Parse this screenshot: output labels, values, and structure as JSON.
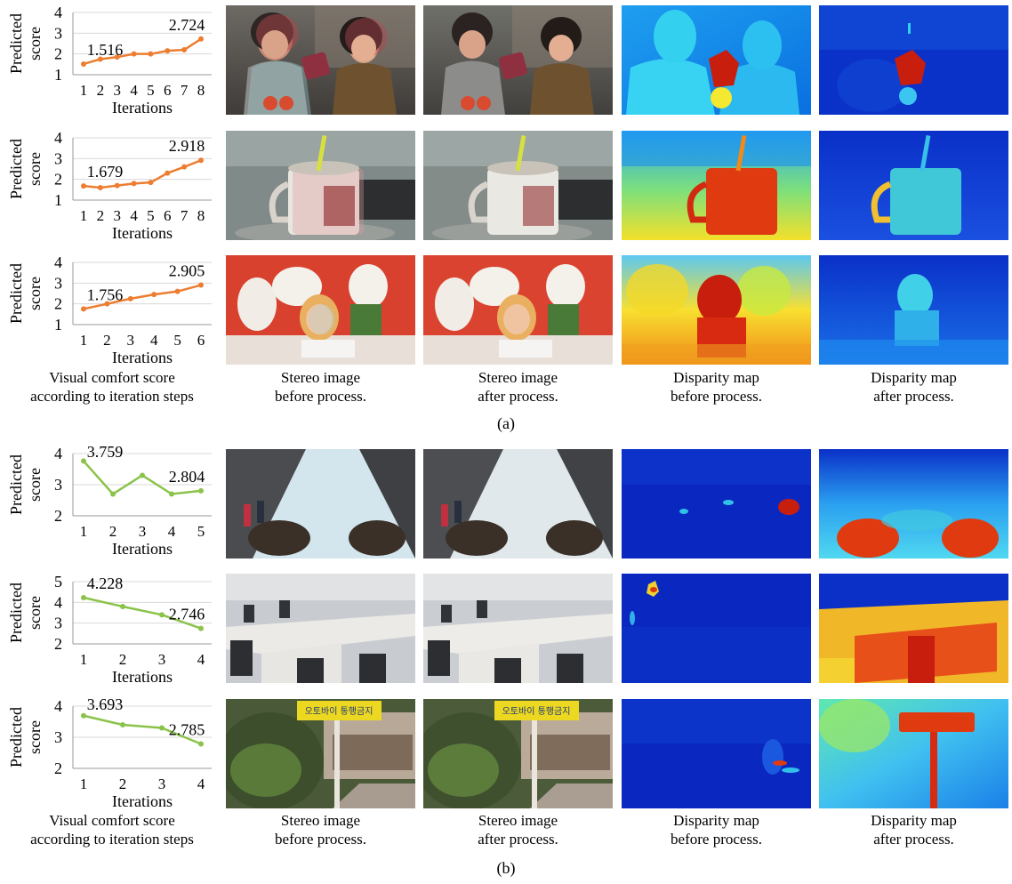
{
  "captions": {
    "chart": [
      "Visual comfort score",
      "according to iteration steps"
    ],
    "stereo_before": [
      "Stereo image",
      "before process."
    ],
    "stereo_after": [
      "Stereo image",
      "after process."
    ],
    "disparity_before": [
      "Disparity map",
      "before process."
    ],
    "disparity_after": [
      "Disparity map",
      "after process."
    ]
  },
  "subfigure_labels": {
    "a": "(a)",
    "b": "(b)"
  },
  "chart_data": [
    {
      "type": "line",
      "xlabel": "Iterations",
      "ylabel": "Predicted score",
      "x": [
        1,
        2,
        3,
        4,
        5,
        6,
        7,
        8
      ],
      "values": [
        1.516,
        1.75,
        1.85,
        2.0,
        2.0,
        2.15,
        2.2,
        2.724
      ],
      "ylim": [
        1,
        4
      ],
      "yticks": [
        1,
        2,
        3,
        4
      ],
      "annotations": [
        {
          "x": 1,
          "text": "1.516"
        },
        {
          "x": 8,
          "text": "2.724"
        }
      ],
      "color": "#ED7D31"
    },
    {
      "type": "line",
      "xlabel": "Iterations",
      "ylabel": "Predicted score",
      "x": [
        1,
        2,
        3,
        4,
        5,
        6,
        7,
        8
      ],
      "values": [
        1.679,
        1.6,
        1.7,
        1.8,
        1.85,
        2.3,
        2.6,
        2.918
      ],
      "ylim": [
        1,
        4
      ],
      "yticks": [
        1,
        2,
        3,
        4
      ],
      "annotations": [
        {
          "x": 1,
          "text": "1.679"
        },
        {
          "x": 8,
          "text": "2.918"
        }
      ],
      "color": "#ED7D31"
    },
    {
      "type": "line",
      "xlabel": "Iterations",
      "ylabel": "Predicted score",
      "x": [
        1,
        2,
        3,
        4,
        5,
        6
      ],
      "values": [
        1.756,
        2.0,
        2.25,
        2.45,
        2.6,
        2.905
      ],
      "ylim": [
        1,
        4
      ],
      "yticks": [
        1,
        2,
        3,
        4
      ],
      "annotations": [
        {
          "x": 1,
          "text": "1.756"
        },
        {
          "x": 6,
          "text": "2.905"
        }
      ],
      "color": "#ED7D31"
    },
    {
      "type": "line",
      "xlabel": "Iterations",
      "ylabel": "Predicted score",
      "x": [
        1,
        2,
        3,
        4,
        5
      ],
      "values": [
        3.759,
        2.7,
        3.3,
        2.7,
        2.804
      ],
      "ylim": [
        2,
        4
      ],
      "yticks": [
        2,
        3,
        4
      ],
      "annotations": [
        {
          "x": 1,
          "text": "3.759"
        },
        {
          "x": 5,
          "text": "2.804"
        }
      ],
      "color": "#8BC34A"
    },
    {
      "type": "line",
      "xlabel": "Iterations",
      "ylabel": "Predicted score",
      "x": [
        1,
        2,
        3,
        4
      ],
      "values": [
        4.228,
        3.8,
        3.4,
        2.746
      ],
      "ylim": [
        2,
        5
      ],
      "yticks": [
        2,
        3,
        4,
        5
      ],
      "annotations": [
        {
          "x": 1,
          "text": "4.228"
        },
        {
          "x": 4,
          "text": "2.746"
        }
      ],
      "color": "#8BC34A"
    },
    {
      "type": "line",
      "xlabel": "Iterations",
      "ylabel": "Predicted score",
      "x": [
        1,
        2,
        3,
        4
      ],
      "values": [
        3.693,
        3.4,
        3.3,
        2.785
      ],
      "ylim": [
        2,
        4
      ],
      "yticks": [
        2,
        3,
        4
      ],
      "annotations": [
        {
          "x": 1,
          "text": "3.693"
        },
        {
          "x": 4,
          "text": "2.785"
        }
      ],
      "color": "#8BC34A"
    }
  ],
  "photo_texts": {
    "sign_text": "오토바이 통행금지"
  }
}
